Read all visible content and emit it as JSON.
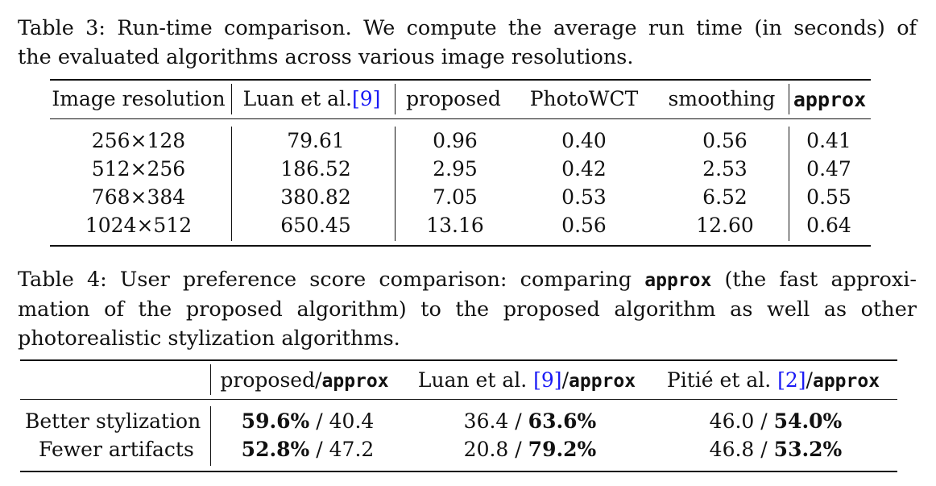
{
  "table3": {
    "caption_lines": [
      "Table 3: Run-time comparison. We compute the average run time (in seconds) of",
      "the evaluated algorithms across various image resolutions."
    ],
    "headers": {
      "resolution": "Image resolution",
      "luan": "Luan et al.",
      "luan_cite": "[9]",
      "proposed": "proposed",
      "photowct": "PhotoWCT",
      "smoothing": "smoothing",
      "approx": "approx"
    },
    "rows": [
      {
        "resolution": "256×128",
        "luan": "79.61",
        "proposed": "0.96",
        "photowct": "0.40",
        "smoothing": "0.56",
        "approx": "0.41"
      },
      {
        "resolution": "512×256",
        "luan": "186.52",
        "proposed": "2.95",
        "photowct": "0.42",
        "smoothing": "2.53",
        "approx": "0.47"
      },
      {
        "resolution": "768×384",
        "luan": "380.82",
        "proposed": "7.05",
        "photowct": "0.53",
        "smoothing": "6.52",
        "approx": "0.55"
      },
      {
        "resolution": "1024×512",
        "luan": "650.45",
        "proposed": "13.16",
        "photowct": "0.56",
        "smoothing": "12.60",
        "approx": "0.64"
      }
    ]
  },
  "table4": {
    "caption": {
      "line1_prefix": "Table 4: User preference score comparison: comparing",
      "line1_code": "approx",
      "line1_suffix": "(the fast approxi-",
      "line2": "mation of the proposed algorithm) to the proposed algorithm as well as other",
      "line3": "photorealistic stylization algorithms."
    },
    "headers": {
      "col1_text": "proposed/",
      "col1_code": "approx",
      "col2_text": "Luan et al. ",
      "col2_cite": "[9]",
      "col2_slash": "/",
      "col2_code": "approx",
      "col3_text": "Pitié et al. ",
      "col3_cite": "[2]",
      "col3_slash": "/",
      "col3_code": "approx"
    },
    "rows": [
      {
        "label": "Better stylization",
        "c1_a": "59.6%",
        "c1_sep": " / ",
        "c1_b": "40.4",
        "c2_a": "36.4",
        "c2_sep": " / ",
        "c2_b": "63.6%",
        "c3_a": "46.0",
        "c3_sep": " / ",
        "c3_b": "54.0%"
      },
      {
        "label": "Fewer artifacts",
        "c1_a": "52.8%",
        "c1_sep": " / ",
        "c1_b": "47.2",
        "c2_a": "20.8",
        "c2_sep": " / ",
        "c2_b": "79.2%",
        "c3_a": "46.8",
        "c3_sep": " / ",
        "c3_b": "53.2%"
      }
    ]
  }
}
